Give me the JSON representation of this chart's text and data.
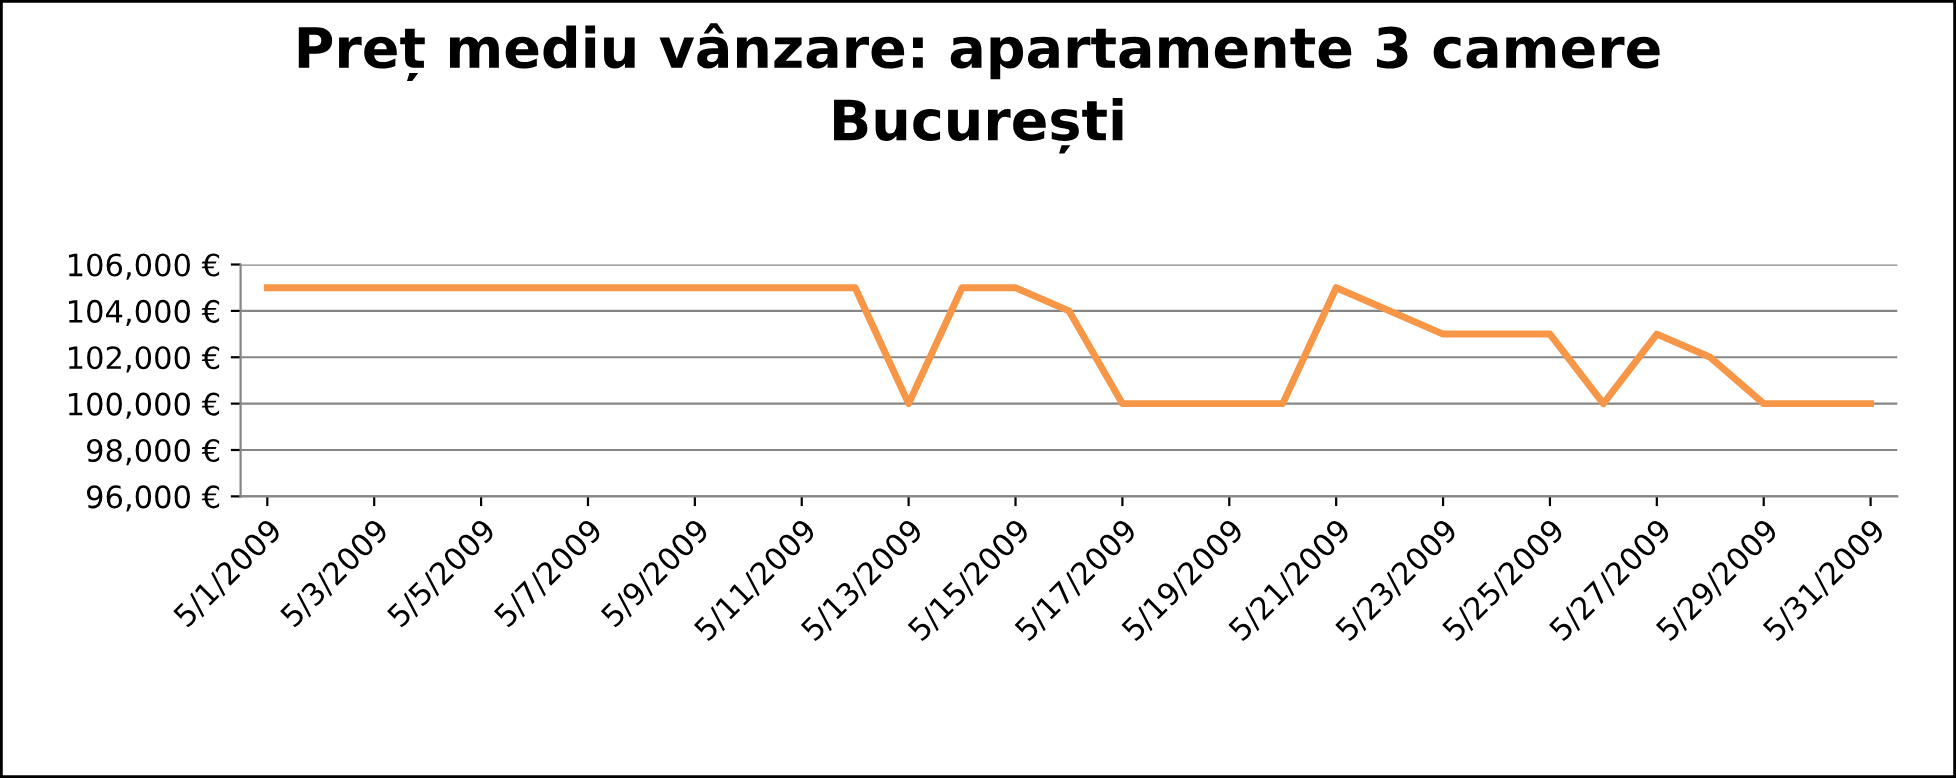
{
  "chart_data": {
    "type": "line",
    "title": "Preț mediu vânzare: apartamente 3 camere\nBucurești",
    "x": [
      "2009-05-01",
      "2009-05-02",
      "2009-05-03",
      "2009-05-04",
      "2009-05-05",
      "2009-05-06",
      "2009-05-07",
      "2009-05-08",
      "2009-05-09",
      "2009-05-10",
      "2009-05-11",
      "2009-05-12",
      "2009-05-13",
      "2009-05-14",
      "2009-05-15",
      "2009-05-16",
      "2009-05-17",
      "2009-05-18",
      "2009-05-19",
      "2009-05-20",
      "2009-05-21",
      "2009-05-22",
      "2009-05-23",
      "2009-05-24",
      "2009-05-25",
      "2009-05-26",
      "2009-05-27",
      "2009-05-28",
      "2009-05-29",
      "2009-05-30",
      "2009-05-31"
    ],
    "series": [
      {
        "color": "#f79646",
        "values": [
          105000,
          105000,
          105000,
          105000,
          105000,
          105000,
          105000,
          105000,
          105000,
          105000,
          105000,
          105000,
          100000,
          105000,
          105000,
          104000,
          100000,
          100000,
          100000,
          100000,
          105000,
          104000,
          103000,
          103000,
          103000,
          100000,
          103000,
          102000,
          100000,
          100000,
          100000
        ]
      }
    ],
    "xlim": [
      "2009-04-30T12:00",
      "2009-05-31T12:00"
    ],
    "xticks": [
      {
        "value": "2009-05-01",
        "label": "5/1/2009"
      },
      {
        "value": "2009-05-03",
        "label": "5/3/2009"
      },
      {
        "value": "2009-05-05",
        "label": "5/5/2009"
      },
      {
        "value": "2009-05-07",
        "label": "5/7/2009"
      },
      {
        "value": "2009-05-09",
        "label": "5/9/2009"
      },
      {
        "value": "2009-05-11",
        "label": "5/11/2009"
      },
      {
        "value": "2009-05-13",
        "label": "5/13/2009"
      },
      {
        "value": "2009-05-15",
        "label": "5/15/2009"
      },
      {
        "value": "2009-05-17",
        "label": "5/17/2009"
      },
      {
        "value": "2009-05-19",
        "label": "5/19/2009"
      },
      {
        "value": "2009-05-21",
        "label": "5/21/2009"
      },
      {
        "value": "2009-05-23",
        "label": "5/23/2009"
      },
      {
        "value": "2009-05-25",
        "label": "5/25/2009"
      },
      {
        "value": "2009-05-27",
        "label": "5/27/2009"
      },
      {
        "value": "2009-05-29",
        "label": "5/29/2009"
      },
      {
        "value": "2009-05-31",
        "label": "5/31/2009"
      }
    ],
    "ylim": [
      96000,
      106000
    ],
    "yticks": [
      {
        "value": 96000,
        "label": "96,000 €"
      },
      {
        "value": 98000,
        "label": "98,000 €"
      },
      {
        "value": 100000,
        "label": "100,000 €"
      },
      {
        "value": 102000,
        "label": "102,000 €"
      },
      {
        "value": 104000,
        "label": "104,000 €"
      },
      {
        "value": 106000,
        "label": "106,000 €"
      }
    ],
    "grid": "y",
    "marker": "none",
    "line_style": "solid"
  }
}
